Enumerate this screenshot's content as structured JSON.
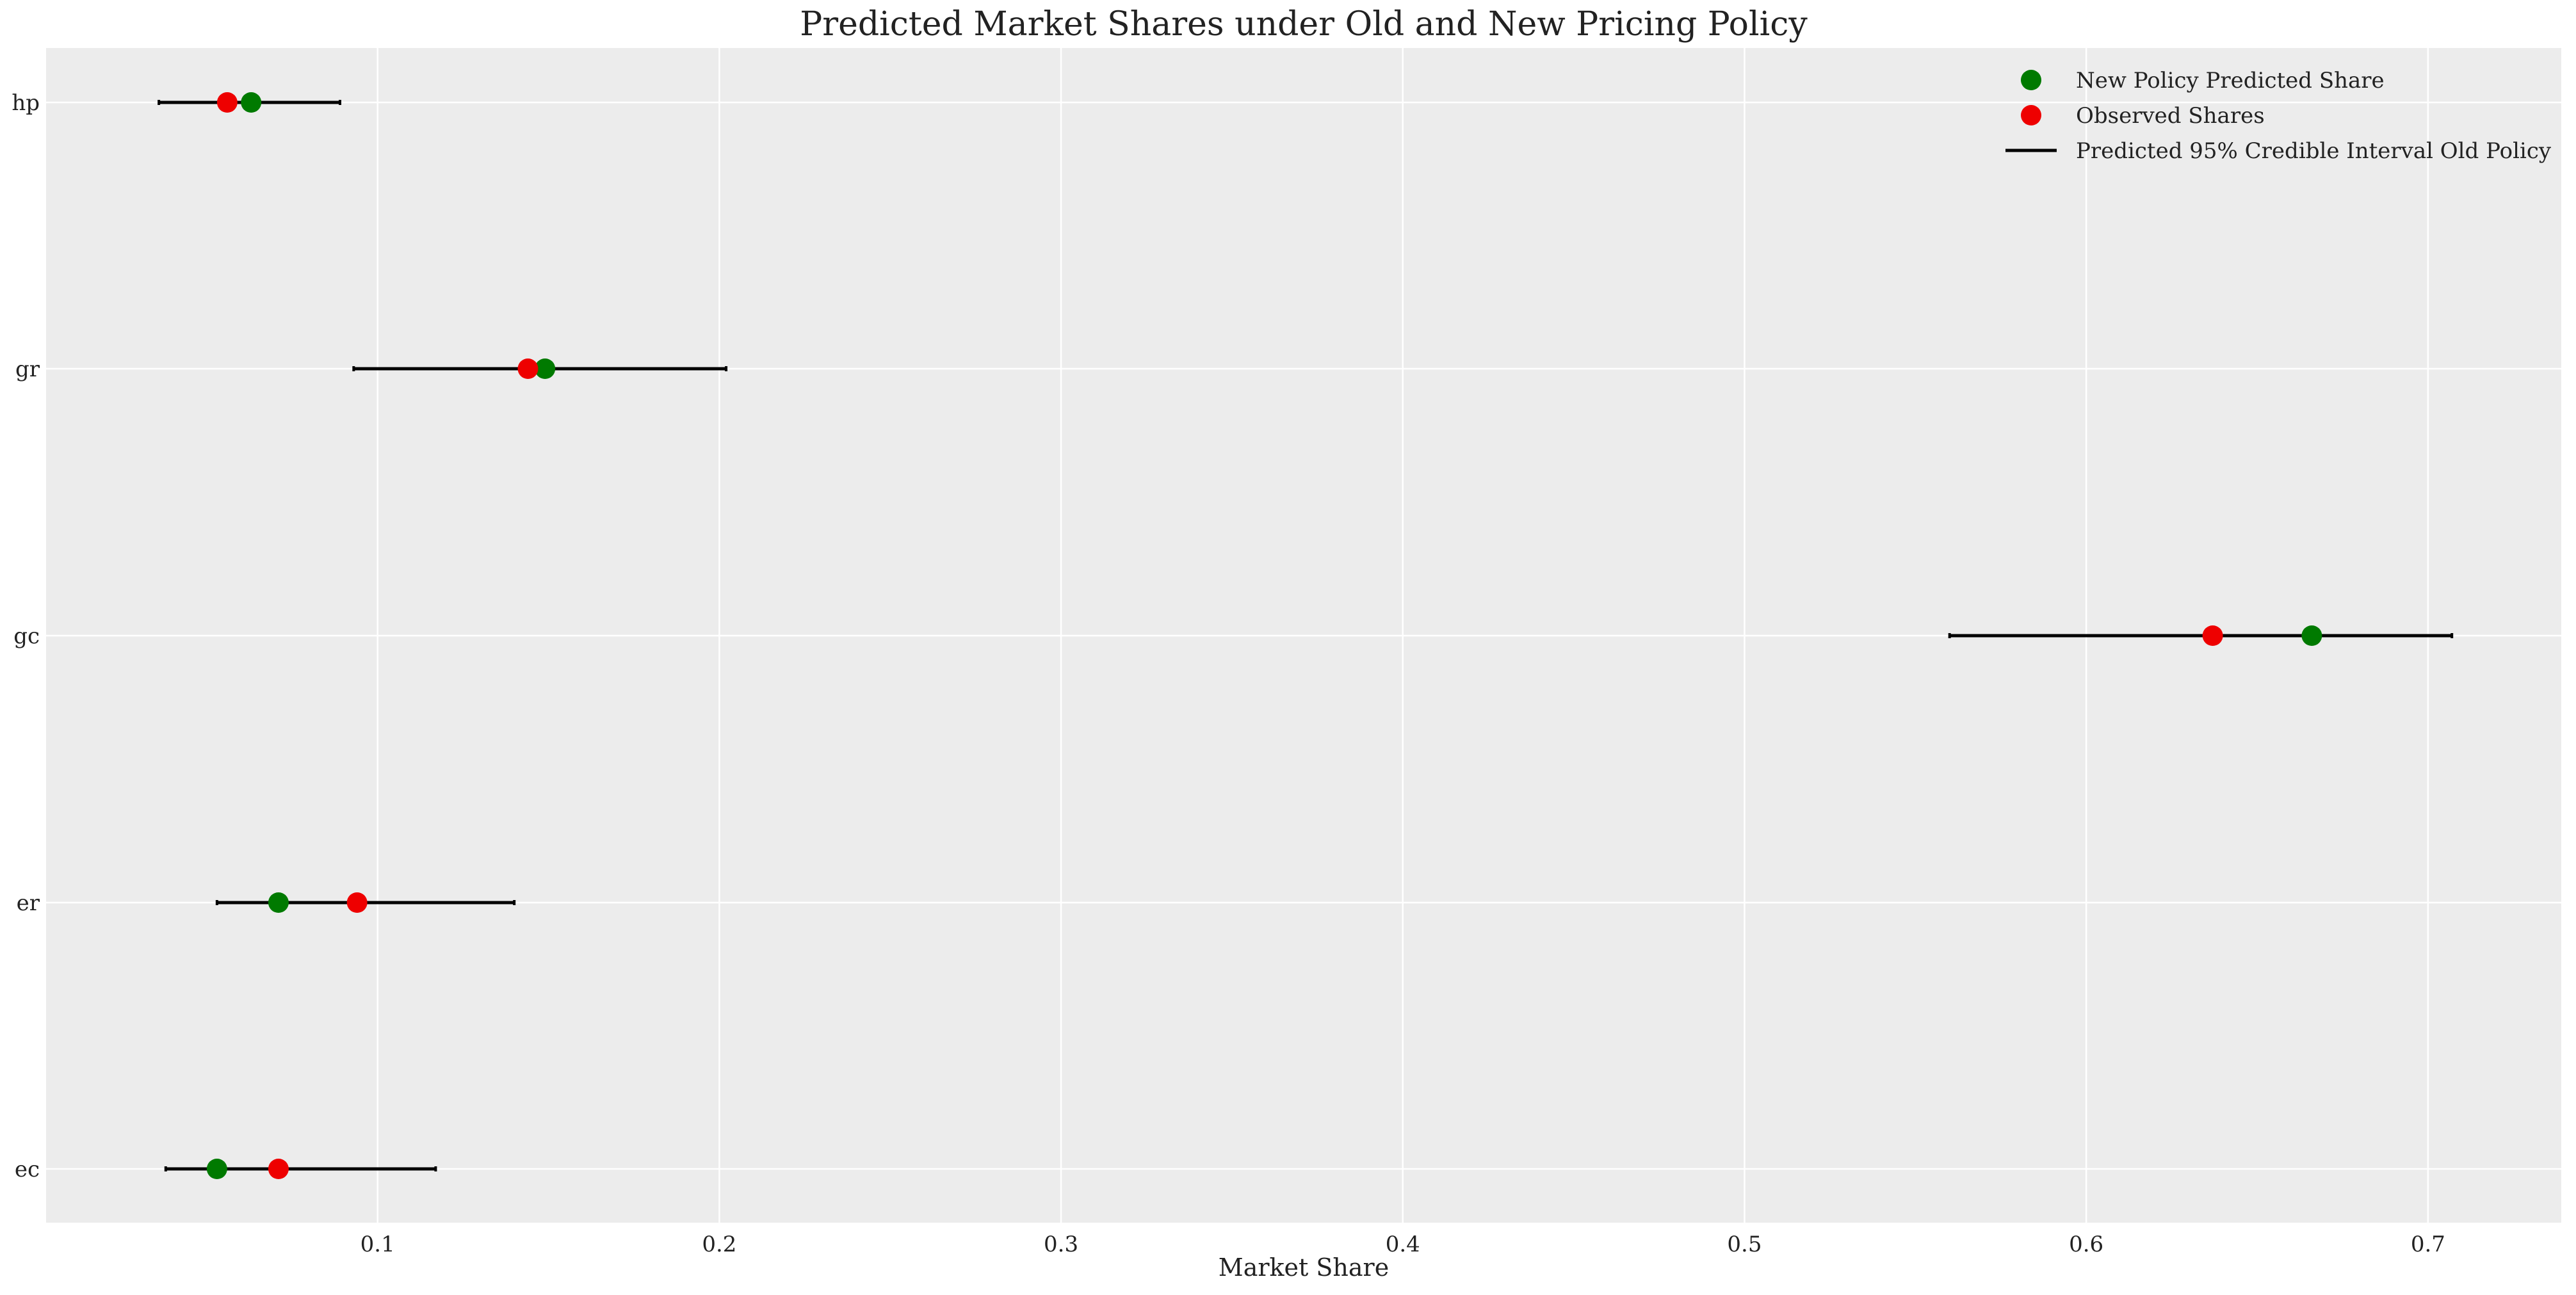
{
  "chart_data": {
    "type": "scatter",
    "title": "Predicted Market Shares under Old and New Pricing Policy",
    "xlabel": "Market Share",
    "ylabel": "",
    "xlim": [
      0.003,
      0.739
    ],
    "x_ticks": [
      0.1,
      0.2,
      0.3,
      0.4,
      0.5,
      0.6,
      0.7
    ],
    "x_tick_labels": [
      "0.1",
      "0.2",
      "0.3",
      "0.4",
      "0.5",
      "0.6",
      "0.7"
    ],
    "categories": [
      "hp",
      "gr",
      "gc",
      "er",
      "ec"
    ],
    "grid": true,
    "legend_position": "top-right",
    "series": [
      {
        "name": "New Policy Predicted Share",
        "kind": "point",
        "color": "#007a00",
        "values": [
          0.063,
          0.149,
          0.666,
          0.071,
          0.053
        ]
      },
      {
        "name": "Observed Shares",
        "kind": "point",
        "color": "#ee0000",
        "values": [
          0.056,
          0.144,
          0.637,
          0.094,
          0.071
        ]
      },
      {
        "name": "Predicted 95% Credible Interval Old Policy",
        "kind": "interval",
        "color": "#000000",
        "low": [
          0.036,
          0.093,
          0.56,
          0.053,
          0.038
        ],
        "high": [
          0.089,
          0.202,
          0.707,
          0.14,
          0.117
        ]
      }
    ]
  }
}
